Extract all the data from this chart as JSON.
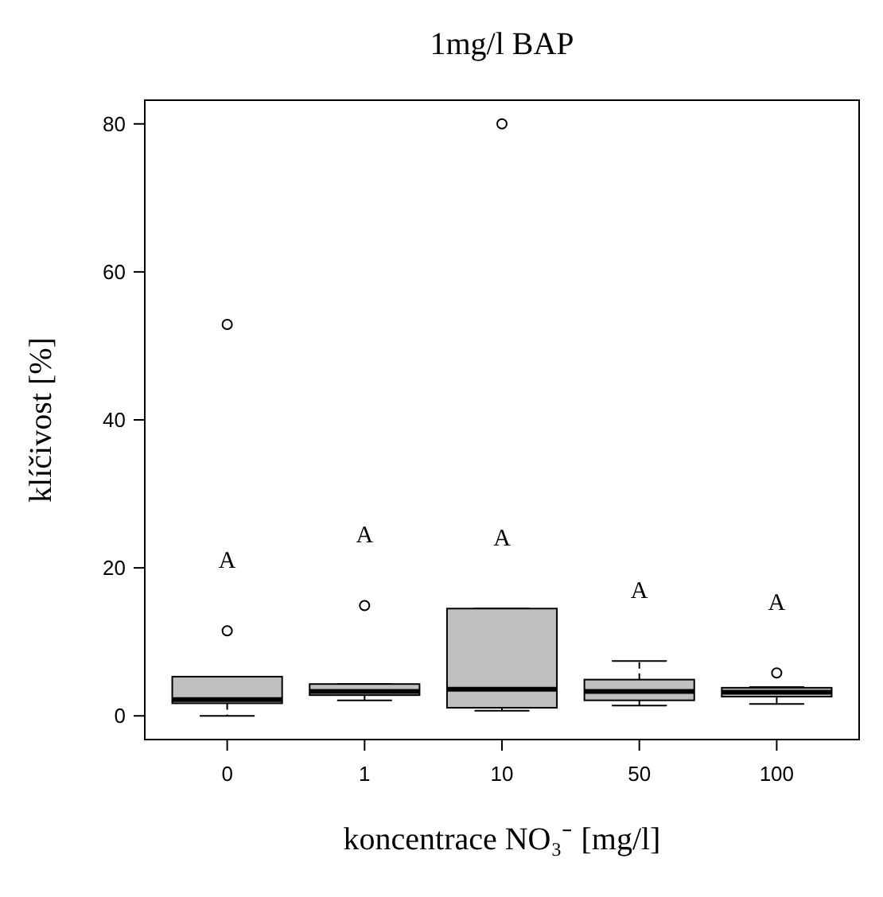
{
  "chart_data": {
    "type": "box",
    "title": "1mg/l BAP",
    "xlabel": "koncentrace NO₃⁻ [mg/l]",
    "ylabel": "klíčivost [%]",
    "categories": [
      "0",
      "1",
      "10",
      "50",
      "100"
    ],
    "color": "#c0c0c0",
    "boxes": [
      {
        "low": 0,
        "q1": 1.7,
        "median": 2.2,
        "q3": 5.3,
        "high": 5.3,
        "outliers": [
          11.5,
          52.9
        ]
      },
      {
        "low": 2.1,
        "q1": 2.8,
        "median": 3.3,
        "q3": 4.3,
        "high": 4.3,
        "outliers": [
          14.9
        ]
      },
      {
        "low": 0.7,
        "q1": 1.1,
        "median": 3.6,
        "q3": 14.5,
        "high": 14.5,
        "outliers": [
          80
        ]
      },
      {
        "low": 1.4,
        "q1": 2.1,
        "median": 3.3,
        "q3": 4.9,
        "high": 7.4
      },
      {
        "low": 1.6,
        "q1": 2.6,
        "median": 3.2,
        "q3": 3.8,
        "high": 3.9,
        "outliers": [
          5.8
        ]
      }
    ],
    "ylim": [
      -3.2,
      83.2
    ],
    "yticks": [
      0,
      20,
      40,
      60,
      80
    ],
    "grid": false,
    "annotations": [
      "A",
      "A",
      "A",
      "A",
      "A"
    ]
  }
}
